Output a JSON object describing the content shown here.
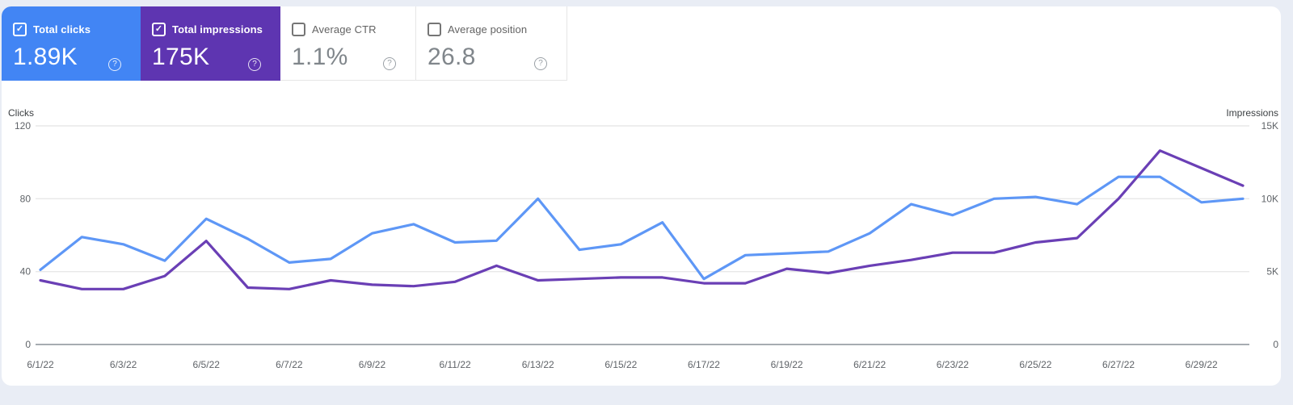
{
  "cards": [
    {
      "label": "Total clicks",
      "value": "1.89K",
      "checked": true,
      "bg": "#4285f4",
      "help": "?"
    },
    {
      "label": "Total impressions",
      "value": "175K",
      "checked": true,
      "bg": "#5e35b1",
      "help": "?"
    },
    {
      "label": "Average CTR",
      "value": "1.1%",
      "checked": false,
      "bg": "#ffffff",
      "help": "?"
    },
    {
      "label": "Average position",
      "value": "26.8",
      "checked": false,
      "bg": "#ffffff",
      "help": "?"
    }
  ],
  "checkmark_glyph": "✓",
  "chart_data": {
    "type": "line",
    "categories": [
      "6/1/22",
      "6/2/22",
      "6/3/22",
      "6/4/22",
      "6/5/22",
      "6/6/22",
      "6/7/22",
      "6/8/22",
      "6/9/22",
      "6/10/22",
      "6/11/22",
      "6/12/22",
      "6/13/22",
      "6/14/22",
      "6/15/22",
      "6/16/22",
      "6/17/22",
      "6/18/22",
      "6/19/22",
      "6/20/22",
      "6/21/22",
      "6/22/22",
      "6/23/22",
      "6/24/22",
      "6/25/22",
      "6/26/22",
      "6/27/22",
      "6/28/22",
      "6/29/22",
      "6/30/22"
    ],
    "x_tick_labels": [
      "6/1/22",
      "6/3/22",
      "6/5/22",
      "6/7/22",
      "6/9/22",
      "6/11/22",
      "6/13/22",
      "6/15/22",
      "6/17/22",
      "6/19/22",
      "6/21/22",
      "6/23/22",
      "6/25/22",
      "6/27/22",
      "6/29/22"
    ],
    "series": [
      {
        "name": "Clicks",
        "axis": "left",
        "color": "#5e97f6",
        "values": [
          41,
          59,
          55,
          46,
          69,
          58,
          45,
          47,
          61,
          66,
          56,
          57,
          80,
          52,
          55,
          67,
          36,
          49,
          50,
          51,
          61,
          77,
          71,
          80,
          81,
          77,
          92,
          92,
          78,
          80
        ]
      },
      {
        "name": "Impressions",
        "axis": "right",
        "color": "#6a3fb5",
        "values": [
          4400,
          3800,
          3800,
          4700,
          7100,
          3900,
          3800,
          4400,
          4100,
          4000,
          4300,
          5400,
          4400,
          4500,
          4600,
          4600,
          4200,
          4200,
          5200,
          4900,
          5400,
          5800,
          6300,
          6300,
          7000,
          7300,
          10000,
          13300,
          12100,
          10900
        ]
      }
    ],
    "y_left": {
      "label": "Clicks",
      "ticks": [
        0,
        40,
        80,
        120
      ],
      "tick_labels": [
        "0",
        "40",
        "80",
        "120"
      ],
      "max": 120
    },
    "y_right": {
      "label": "Impressions",
      "ticks": [
        0,
        5000,
        10000,
        15000
      ],
      "tick_labels": [
        "0",
        "5K",
        "10K",
        "15K"
      ],
      "max": 15000
    },
    "grid": true,
    "legend_position": "none",
    "grid_color": "#e8e8e8",
    "axis_line_color": "#9aa0a6"
  }
}
